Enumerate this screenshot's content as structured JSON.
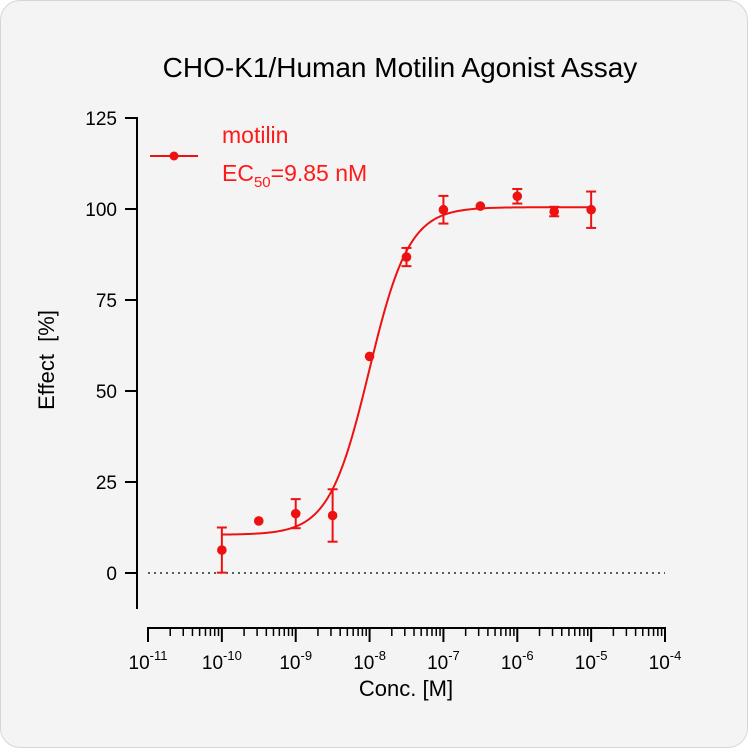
{
  "chart_data": {
    "type": "scatter",
    "title": "CHO-K1/Human Motilin Agonist Assay",
    "xlabel": "Conc. [M]",
    "ylabel": "Effect  [%]",
    "x_scale": "log10",
    "xlim": [
      1e-11,
      0.0001
    ],
    "ylim": [
      -10,
      125
    ],
    "x_ticks": [
      {
        "base": "10",
        "exp": "-11",
        "value": 1e-11
      },
      {
        "base": "10",
        "exp": "-10",
        "value": 1e-10
      },
      {
        "base": "10",
        "exp": "-9",
        "value": 1e-09
      },
      {
        "base": "10",
        "exp": "-8",
        "value": 1e-08
      },
      {
        "base": "10",
        "exp": "-7",
        "value": 1e-07
      },
      {
        "base": "10",
        "exp": "-6",
        "value": 1e-06
      },
      {
        "base": "10",
        "exp": "-5",
        "value": 1e-05
      },
      {
        "base": "10",
        "exp": "-4",
        "value": 0.0001
      }
    ],
    "y_ticks": [
      "0",
      "25",
      "50",
      "75",
      "100",
      "125"
    ],
    "reference_line_y": 0,
    "series": [
      {
        "name": "motilin",
        "color": "#ee1111",
        "points": [
          {
            "x": 1e-10,
            "y": 6.3,
            "err": 6.2
          },
          {
            "x": 3.16e-10,
            "y": 14.3,
            "err": 0
          },
          {
            "x": 1e-09,
            "y": 16.3,
            "err": 4
          },
          {
            "x": 3.16e-09,
            "y": 15.8,
            "err": 7.2
          },
          {
            "x": 1e-08,
            "y": 59.5,
            "err": 0
          },
          {
            "x": 3.16e-08,
            "y": 86.8,
            "err": 2.5
          },
          {
            "x": 1e-07,
            "y": 99.8,
            "err": 3.8
          },
          {
            "x": 3.16e-07,
            "y": 100.8,
            "err": 0
          },
          {
            "x": 1e-06,
            "y": 103.5,
            "err": 2
          },
          {
            "x": 3.16e-06,
            "y": 99.3,
            "err": 1.3
          },
          {
            "x": 1e-05,
            "y": 99.8,
            "err": 5
          }
        ],
        "fit": {
          "model": "4PL",
          "bottom": 10.5,
          "top": 100.5,
          "ec50": 9.85e-09,
          "hill": 1.6
        }
      }
    ],
    "legend": {
      "position": "top-left",
      "label": "motilin",
      "ec50_prefix": "EC",
      "ec50_subscript": "50",
      "ec50_value": "=9.85 nM"
    }
  }
}
